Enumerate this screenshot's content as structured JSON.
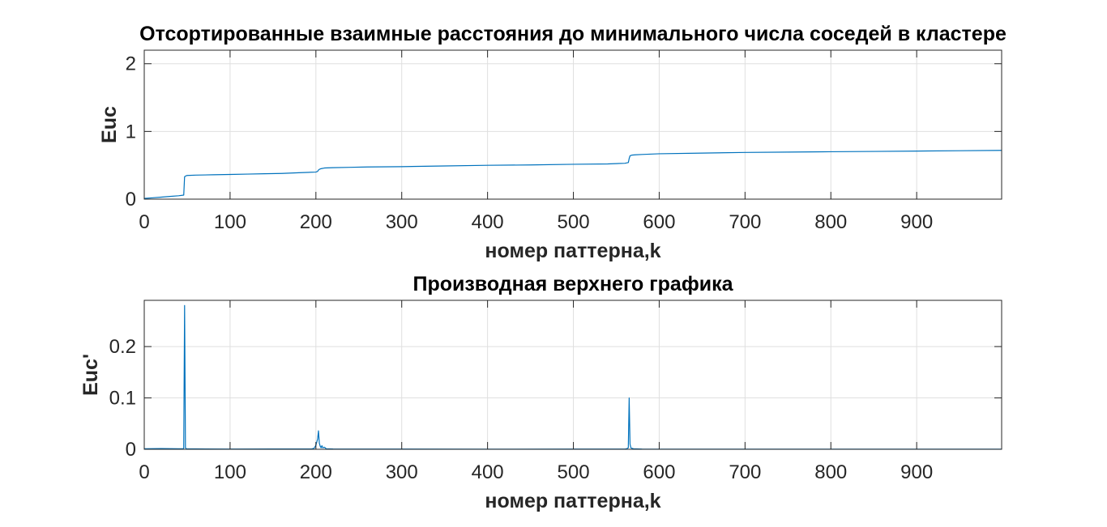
{
  "chart_data": [
    {
      "type": "line",
      "title": "Отсортированные взаимные расстояния до минимального числа соседей в кластере",
      "xlabel": "номер паттерна,k",
      "ylabel": "Euc",
      "xlim": [
        0,
        999
      ],
      "ylim": [
        0,
        2.2
      ],
      "grid": true,
      "xticks": [
        0,
        100,
        200,
        300,
        400,
        500,
        600,
        700,
        800,
        900
      ],
      "xtick_labels": [
        "0",
        "100",
        "200",
        "300",
        "400",
        "500",
        "600",
        "700",
        "800",
        "900"
      ],
      "yticks": [
        0,
        1,
        2
      ],
      "ytick_labels": [
        "0",
        "1",
        "2"
      ],
      "series": [
        {
          "color": "#0072bd",
          "x": [
            0,
            10,
            20,
            30,
            40,
            46,
            47,
            48,
            50,
            60,
            80,
            100,
            120,
            140,
            160,
            180,
            200,
            202,
            203,
            204,
            206,
            210,
            220,
            240,
            260,
            300,
            350,
            400,
            450,
            500,
            540,
            560,
            564,
            565,
            566,
            568,
            572,
            580,
            600,
            650,
            700,
            750,
            800,
            850,
            900,
            950,
            999
          ],
          "y": [
            0.01,
            0.02,
            0.03,
            0.04,
            0.05,
            0.06,
            0.33,
            0.34,
            0.35,
            0.355,
            0.36,
            0.365,
            0.37,
            0.375,
            0.38,
            0.39,
            0.4,
            0.41,
            0.43,
            0.44,
            0.45,
            0.46,
            0.465,
            0.47,
            0.475,
            0.48,
            0.49,
            0.5,
            0.505,
            0.515,
            0.52,
            0.53,
            0.54,
            0.6,
            0.64,
            0.65,
            0.655,
            0.66,
            0.67,
            0.68,
            0.69,
            0.695,
            0.7,
            0.705,
            0.71,
            0.715,
            0.72
          ]
        }
      ]
    },
    {
      "type": "line",
      "title": "Производная верхнего графика",
      "xlabel": "номер паттерна,k",
      "ylabel": "Euc'",
      "xlim": [
        0,
        999
      ],
      "ylim": [
        0,
        0.29
      ],
      "grid": true,
      "xticks": [
        0,
        100,
        200,
        300,
        400,
        500,
        600,
        700,
        800,
        900
      ],
      "xtick_labels": [
        "0",
        "100",
        "200",
        "300",
        "400",
        "500",
        "600",
        "700",
        "800",
        "900"
      ],
      "yticks": [
        0,
        0.1,
        0.2
      ],
      "ytick_labels": [
        "0",
        "0.1",
        "0.2"
      ],
      "series": [
        {
          "color": "#0072bd",
          "x": [
            0,
            20,
            40,
            45,
            46,
            47,
            48,
            49,
            60,
            100,
            150,
            195,
            198,
            200,
            202,
            203,
            204,
            205,
            206,
            207,
            208,
            210,
            212,
            220,
            300,
            400,
            500,
            560,
            562,
            564,
            565,
            566,
            567,
            568,
            570,
            580,
            700,
            800,
            900,
            999
          ],
          "y": [
            0.001,
            0.0015,
            0.001,
            0.001,
            0.002,
            0.28,
            0.003,
            0.001,
            0.0008,
            0.0005,
            0.0006,
            0.0006,
            0.002,
            0.008,
            0.02,
            0.036,
            0.012,
            0.006,
            0.003,
            0.007,
            0.003,
            0.004,
            0.001,
            0.0006,
            0.0004,
            0.0003,
            0.0004,
            0.0005,
            0.001,
            0.003,
            0.1,
            0.01,
            0.003,
            0.002,
            0.001,
            0.0004,
            0.0003,
            0.0003,
            0.0003,
            0.0003
          ]
        }
      ]
    }
  ]
}
